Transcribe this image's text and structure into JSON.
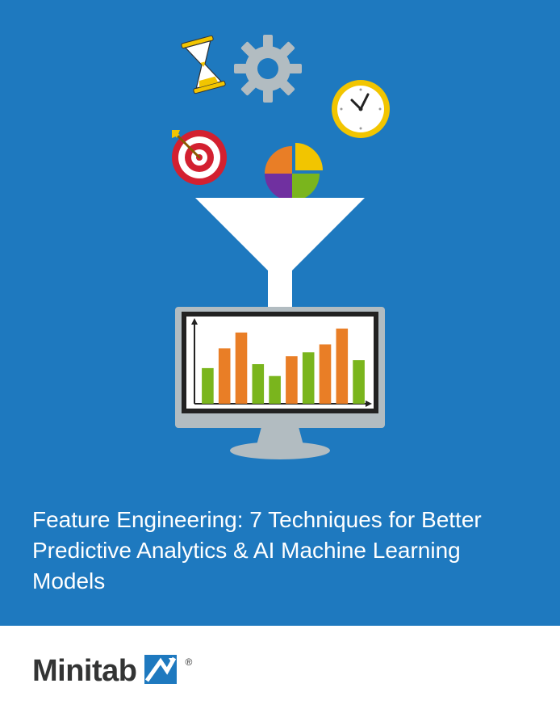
{
  "hero": {
    "background_color": "#1e79bf",
    "title": "Feature Engineering: 7 Techniques for Better Predictive Analytics & AI Machine Learning Models",
    "title_color": "#ffffff",
    "title_fontsize": 28
  },
  "illustration": {
    "hourglass": {
      "frame_color": "#f2c500",
      "sand_color": "#ffffff",
      "outline": "#333333"
    },
    "gear": {
      "color": "#b2bcc1",
      "teeth": 8
    },
    "clock": {
      "rim_color": "#f2c500",
      "face_color": "#ffffff",
      "hand_color": "#222222",
      "hour": 10,
      "minute": 10
    },
    "target": {
      "ring_color": "#d32030",
      "gap_color": "#ffffff",
      "rings": 3,
      "arrow_color": "#f2c500"
    },
    "pie": {
      "slices": [
        {
          "color": "#f2c500",
          "start": 0,
          "end": 90
        },
        {
          "color": "#7030a0",
          "start": 90,
          "end": 180
        },
        {
          "color": "#e97e26",
          "start": 180,
          "end": 270
        },
        {
          "color": "#7ab51d",
          "start": 270,
          "end": 360
        }
      ]
    },
    "funnel": {
      "color": "#ffffff"
    },
    "monitor": {
      "body_color": "#b2bcc1",
      "bezel_color": "#222222",
      "screen_color": "#ffffff"
    },
    "chart": {
      "type": "bar",
      "axis_color": "#222222",
      "bar_width": 0.7,
      "values": [
        45,
        70,
        90,
        50,
        35,
        60,
        65,
        75,
        95,
        55
      ],
      "colors": [
        "#7ab51d",
        "#e97e26",
        "#e97e26",
        "#7ab51d",
        "#7ab51d",
        "#e97e26",
        "#7ab51d",
        "#e97e26",
        "#e97e26",
        "#7ab51d"
      ],
      "ylim": [
        0,
        100
      ]
    }
  },
  "footer": {
    "background_color": "#ffffff",
    "logo_text": "Minitab",
    "logo_text_color": "#333434",
    "logo_mark_color": "#1e79bf",
    "logo_mark_arrow_color": "#ffffff",
    "registered": "®"
  }
}
